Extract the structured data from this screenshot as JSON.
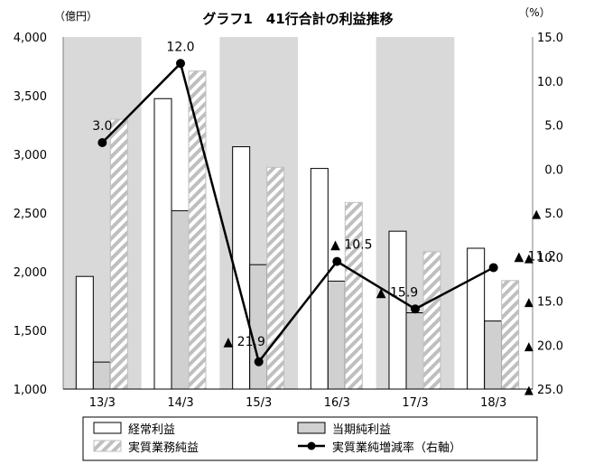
{
  "chart_data": {
    "type": "bar",
    "title": "グラフ1　41行合計の利益推移",
    "left_unit": "（億円）",
    "right_unit": "（%）",
    "categories": [
      "13/3",
      "14/3",
      "15/3",
      "16/3",
      "17/3",
      "18/3"
    ],
    "left_axis": {
      "min": 1000,
      "max": 4000,
      "ticks": [
        1000,
        1500,
        2000,
        2500,
        3000,
        3500,
        4000
      ],
      "tick_labels": [
        "1,000",
        "1,500",
        "2,000",
        "2,500",
        "3,000",
        "3,500",
        "4,000"
      ]
    },
    "right_axis": {
      "min": -25,
      "max": 15,
      "ticks": [
        15,
        10,
        5,
        0,
        -5,
        -10,
        -15,
        -20,
        -25
      ],
      "tick_labels": [
        "15.0",
        "10.0",
        "5.0",
        "0.0",
        "▲ 5.0",
        "▲ 10.0",
        "▲ 15.0",
        "▲ 20.0",
        "▲ 25.0"
      ]
    },
    "series": [
      {
        "name": "経常利益",
        "kind": "bar",
        "style": "white",
        "values": [
          1960,
          3475,
          3065,
          2880,
          2345,
          2200
        ]
      },
      {
        "name": "当期純利益",
        "kind": "bar",
        "style": "gray",
        "values": [
          1230,
          2520,
          2060,
          1920,
          1650,
          1580
        ]
      },
      {
        "name": "実質業務純益",
        "kind": "bar",
        "style": "hatch",
        "values": [
          3300,
          3710,
          2890,
          2590,
          2170,
          1925
        ]
      },
      {
        "name": "実質業純増減率（右軸）",
        "kind": "line",
        "axis": "right",
        "values": [
          3.0,
          12.0,
          -21.9,
          -10.5,
          -15.9,
          -11.2
        ]
      }
    ],
    "data_labels": [
      "3.0",
      "12.0",
      "▲ 21.9",
      "▲ 10.5",
      "▲ 15.9",
      "▲ 11.2"
    ],
    "grid": "vertical-gray-bands",
    "legend_position": "bottom"
  },
  "colors": {
    "plot_band": "#d9d9d9",
    "gray_bar": "#d0d0d0",
    "hatch_stripe": "#bfbfbf",
    "line": "#000000"
  }
}
